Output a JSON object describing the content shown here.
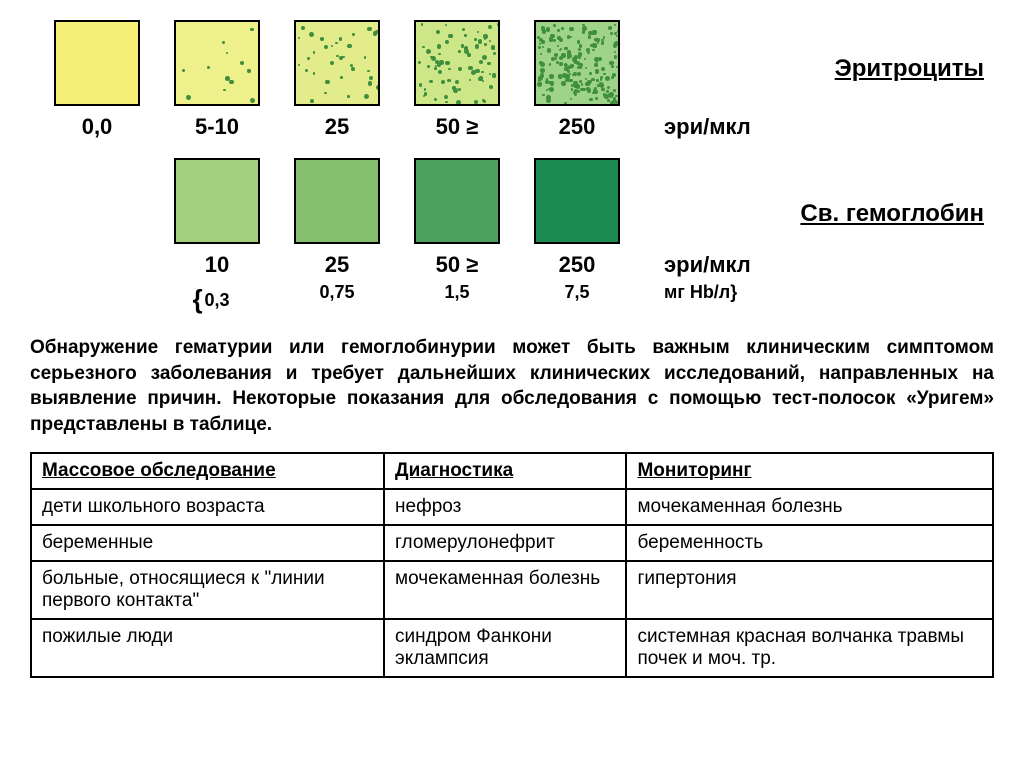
{
  "row1": {
    "title": "Эритроциты",
    "swatches": [
      {
        "bg": "#f5ee77",
        "density": 0
      },
      {
        "bg": "#eef08c",
        "density": 12
      },
      {
        "bg": "#e2ec8a",
        "density": 35
      },
      {
        "bg": "#cde688",
        "density": 80
      },
      {
        "bg": "#9fd389",
        "density": 200
      }
    ],
    "labels": [
      "0,0",
      "5-10",
      "25",
      "50   ≥",
      "250"
    ],
    "unit": "эри/мкл"
  },
  "row2": {
    "title": "Св. гемоглобин",
    "swatches": [
      {
        "bg": "#a4cf7e",
        "density": 0
      },
      {
        "bg": "#86c06f",
        "density": 0
      },
      {
        "bg": "#4ea15c",
        "density": 0
      },
      {
        "bg": "#1a8a50",
        "density": 0
      }
    ],
    "labels": [
      "10",
      "25",
      "50   ≥",
      "250"
    ],
    "sublabels": [
      "0,3",
      "0,75",
      "1,5",
      "7,5"
    ],
    "unit": "эри/мкл",
    "subunit": "мг Hb/л}"
  },
  "description": "Обнаружение гематурии или гемоглобинурии может быть важным клиническим симптомом серьезного заболевания и требует дальнейших клинических исследований, направленных на выявление причин. Некоторые показания для обследования с помощью тест-полосок «Уригем» представлены в таблице.",
  "table": {
    "headers": [
      "Массовое обследование",
      "Диагностика",
      "Мониторинг"
    ],
    "rows": [
      [
        "дети школьного возраста",
        "нефроз",
        "мочекаменная болезнь"
      ],
      [
        "беременные",
        "гломерулонефрит",
        "беременность"
      ],
      [
        "больные, относящиеся к \"линии первого контакта\"",
        "мочекаменная болезнь",
        "гипертония"
      ],
      [
        "пожилые люди",
        "синдром Фанкони эклампсия",
        "системная красная волчанка травмы почек и моч. тр."
      ]
    ]
  },
  "colors": {
    "border": "#000000",
    "text": "#000000",
    "bg": "#ffffff",
    "dot": "#3f8f3f"
  }
}
